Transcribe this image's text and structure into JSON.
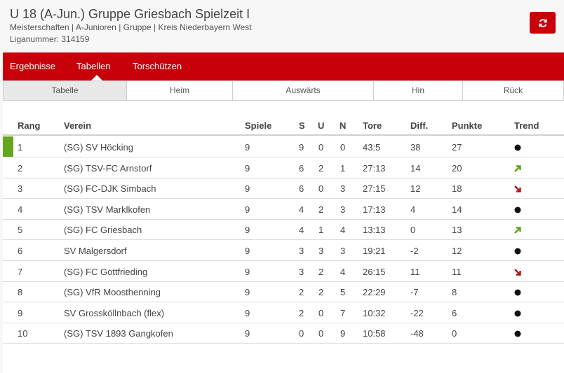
{
  "header": {
    "title": "U 18 (A-Jun.) Gruppe Griesbach Spielzeit I",
    "subtitle": "Meisterschaften | A-Junioren | Gruppe | Kreis Niederbayern West",
    "liganummer": "Liganummer: 314159",
    "refresh_icon": "refresh-icon"
  },
  "nav": {
    "items": [
      "Ergebnisse",
      "Tabellen",
      "Torschützen"
    ],
    "active": "Tabellen"
  },
  "subtabs": {
    "items": [
      "Tabelle",
      "Heim",
      "Auswärts",
      "Hin",
      "Rück"
    ],
    "active": "Tabelle"
  },
  "table": {
    "columns": [
      "Rang",
      "Verein",
      "Spiele",
      "S",
      "U",
      "N",
      "Tore",
      "Diff.",
      "Punkte",
      "Trend"
    ],
    "rows": [
      {
        "rang": "1",
        "verein": "(SG) SV Höcking",
        "spiele": "9",
        "s": "9",
        "u": "0",
        "n": "0",
        "tore": "43:5",
        "diff": "38",
        "punkte": "27",
        "trend": "same"
      },
      {
        "rang": "2",
        "verein": "(SG) TSV-FC Arnstorf",
        "spiele": "9",
        "s": "6",
        "u": "2",
        "n": "1",
        "tore": "27:13",
        "diff": "14",
        "punkte": "20",
        "trend": "up"
      },
      {
        "rang": "3",
        "verein": "(SG) FC-DJK Simbach",
        "spiele": "9",
        "s": "6",
        "u": "0",
        "n": "3",
        "tore": "27:15",
        "diff": "12",
        "punkte": "18",
        "trend": "down"
      },
      {
        "rang": "4",
        "verein": "(SG) TSV Marklkofen",
        "spiele": "9",
        "s": "4",
        "u": "2",
        "n": "3",
        "tore": "17:13",
        "diff": "4",
        "punkte": "14",
        "trend": "same"
      },
      {
        "rang": "5",
        "verein": "(SG) FC Griesbach",
        "spiele": "9",
        "s": "4",
        "u": "1",
        "n": "4",
        "tore": "13:13",
        "diff": "0",
        "punkte": "13",
        "trend": "up"
      },
      {
        "rang": "6",
        "verein": "SV Malgersdorf",
        "spiele": "9",
        "s": "3",
        "u": "3",
        "n": "3",
        "tore": "19:21",
        "diff": "-2",
        "punkte": "12",
        "trend": "same"
      },
      {
        "rang": "7",
        "verein": "(SG) FC Gottfrieding",
        "spiele": "9",
        "s": "3",
        "u": "2",
        "n": "4",
        "tore": "26:15",
        "diff": "11",
        "punkte": "11",
        "trend": "down"
      },
      {
        "rang": "8",
        "verein": "(SG) VfR Moosthenning",
        "spiele": "9",
        "s": "2",
        "u": "2",
        "n": "5",
        "tore": "22:29",
        "diff": "-7",
        "punkte": "8",
        "trend": "same"
      },
      {
        "rang": "9",
        "verein": "SV Grossköllnbach (flex)",
        "spiele": "9",
        "s": "2",
        "u": "0",
        "n": "7",
        "tore": "10:32",
        "diff": "-22",
        "punkte": "6",
        "trend": "same"
      },
      {
        "rang": "10",
        "verein": "(SG) TSV 1893 Gangkofen",
        "spiele": "9",
        "s": "0",
        "u": "0",
        "n": "9",
        "tore": "10:58",
        "diff": "-48",
        "punkte": "0",
        "trend": "same"
      }
    ]
  },
  "colors": {
    "brand_red": "#c8000a",
    "leader_green": "#66a61e",
    "trend_up": "#5aa01e",
    "trend_down": "#b01010",
    "trend_same": "#111111"
  }
}
